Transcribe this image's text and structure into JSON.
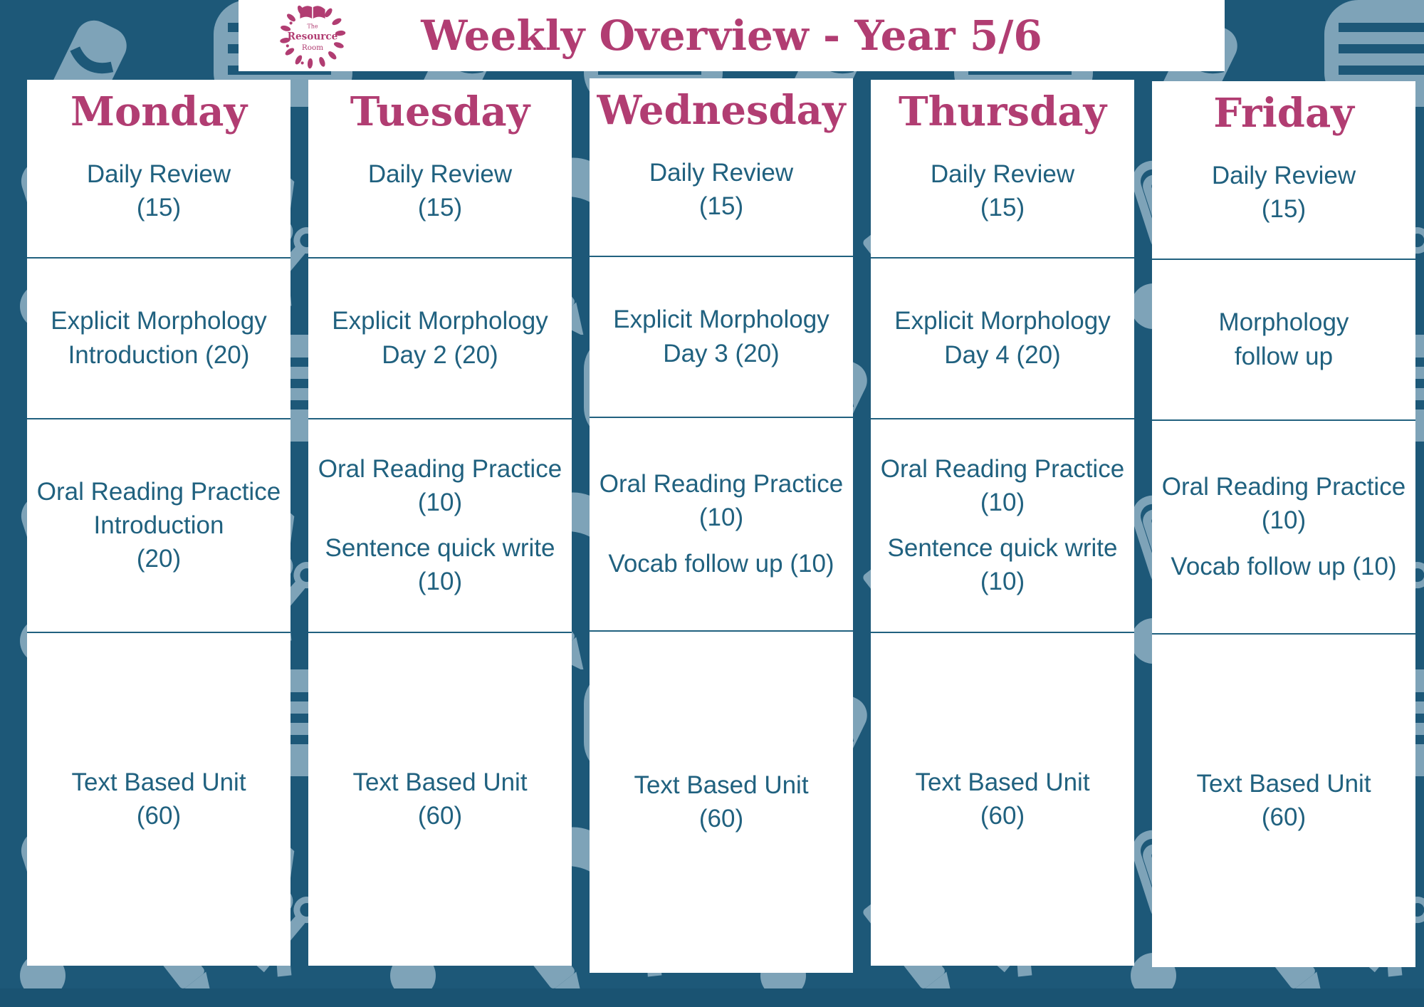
{
  "header": {
    "title": "Weekly Overview - Year 5/6",
    "logo_line1": "The",
    "logo_line2": "Resource",
    "logo_line3": "Room"
  },
  "colors": {
    "background_teal": "#1d5878",
    "pattern_light_blue": "#7ea3b8",
    "accent_magenta": "#b13d72",
    "body_text_teal": "#20617f",
    "card_white": "#ffffff"
  },
  "columns": [
    {
      "day": "Monday",
      "cells": [
        {
          "lines": [
            "Daily Review",
            "(15)"
          ]
        },
        {
          "lines": [
            "Explicit Morphology",
            "Introduction (20)"
          ]
        },
        {
          "blocks": [
            {
              "lines": [
                "Oral Reading Practice",
                "Introduction",
                "(20)"
              ]
            }
          ]
        },
        {
          "lines": [
            "Text Based Unit",
            "(60)"
          ]
        }
      ]
    },
    {
      "day": "Tuesday",
      "cells": [
        {
          "lines": [
            "Daily Review",
            "(15)"
          ]
        },
        {
          "lines": [
            "Explicit Morphology",
            "Day 2 (20)"
          ]
        },
        {
          "blocks": [
            {
              "lines": [
                "Oral Reading Practice",
                "(10)"
              ]
            },
            {
              "lines": [
                "Sentence quick write",
                "(10)"
              ]
            }
          ]
        },
        {
          "lines": [
            "Text Based Unit",
            "(60)"
          ]
        }
      ]
    },
    {
      "day": "Wednesday",
      "cells": [
        {
          "lines": [
            "Daily Review",
            "(15)"
          ]
        },
        {
          "lines": [
            "Explicit Morphology",
            "Day 3 (20)"
          ]
        },
        {
          "blocks": [
            {
              "lines": [
                "Oral Reading Practice",
                "(10)"
              ]
            },
            {
              "lines": [
                "Vocab follow up (10)"
              ]
            }
          ]
        },
        {
          "lines": [
            "Text Based Unit",
            "(60)"
          ]
        }
      ]
    },
    {
      "day": "Thursday",
      "cells": [
        {
          "lines": [
            "Daily Review",
            "(15)"
          ]
        },
        {
          "lines": [
            "Explicit Morphology",
            "Day 4 (20)"
          ]
        },
        {
          "blocks": [
            {
              "lines": [
                "Oral Reading Practice",
                "(10)"
              ]
            },
            {
              "lines": [
                "Sentence quick write",
                "(10)"
              ]
            }
          ]
        },
        {
          "lines": [
            "Text Based Unit",
            "(60)"
          ]
        }
      ]
    },
    {
      "day": "Friday",
      "cells": [
        {
          "lines": [
            "Daily Review",
            "(15)"
          ]
        },
        {
          "lines": [
            "Morphology",
            "follow up"
          ]
        },
        {
          "blocks": [
            {
              "lines": [
                "Oral Reading Practice",
                "(10)"
              ]
            },
            {
              "lines": [
                "Vocab follow up (10)"
              ]
            }
          ]
        },
        {
          "lines": [
            "Text Based Unit",
            "(60)"
          ]
        }
      ]
    }
  ]
}
